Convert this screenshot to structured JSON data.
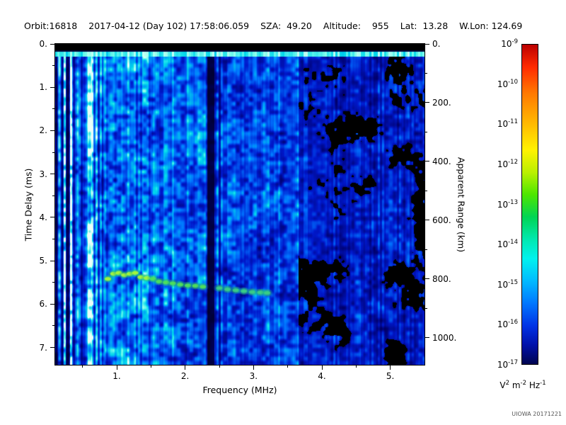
{
  "header": {
    "segments": [
      "Orbit:16818",
      "2017-04-12 (Day 102) 17:58:06.059",
      "SZA:  49.20",
      "Altitude:    955",
      "Lat:  13.28",
      "W.Lon: 124.69"
    ]
  },
  "credit": "UIOWA 20171221",
  "chart_data": {
    "type": "heatmap",
    "subtype": "radar-sounder-ionogram-spectrogram",
    "title": "",
    "xlabel": "Frequency (MHz)",
    "ylabel": "Time Delay (ms)",
    "y2label": "Apparent Range (km)",
    "x_range": [
      0.1,
      5.5
    ],
    "y_range": [
      0,
      7.4
    ],
    "y2_range": [
      0,
      1092
    ],
    "x_ticks": [
      "1.",
      "2.",
      "3.",
      "4.",
      "5."
    ],
    "x_tick_values": [
      1,
      2,
      3,
      4,
      5
    ],
    "y_ticks": [
      "0.",
      "1.",
      "2.",
      "3.",
      "4.",
      "5.",
      "6.",
      "7."
    ],
    "y_tick_values": [
      0,
      1,
      2,
      3,
      4,
      5,
      6,
      7
    ],
    "y2_ticks": [
      "0.",
      "200.",
      "400.",
      "600.",
      "800.",
      "1000."
    ],
    "y2_tick_values": [
      0,
      200,
      400,
      600,
      800,
      1000
    ],
    "grid": false,
    "colorbar": {
      "scale": "log",
      "tick_exponents": [
        -9,
        -10,
        -11,
        -12,
        -13,
        -14,
        -15,
        -16,
        -17
      ],
      "unit_parts": [
        [
          "V",
          "2"
        ],
        [
          "m",
          "-2"
        ],
        [
          "Hz",
          "-1"
        ]
      ],
      "gradient": [
        [
          "#bb0000",
          0
        ],
        [
          "#ff2a00",
          7
        ],
        [
          "#ff7700",
          15
        ],
        [
          "#ffbb00",
          25
        ],
        [
          "#fff200",
          33
        ],
        [
          "#baf000",
          40
        ],
        [
          "#4ce600",
          47
        ],
        [
          "#00d455",
          54
        ],
        [
          "#00e8b0",
          61
        ],
        [
          "#00f2ee",
          67
        ],
        [
          "#00baff",
          74
        ],
        [
          "#0077ff",
          81
        ],
        [
          "#0033e6",
          88
        ],
        [
          "#0011aa",
          94
        ],
        [
          "#000550",
          100
        ]
      ]
    },
    "features": {
      "description": "Noisy blue/cyan spectrogram field; brighter streaked columns below 0.8 MHz, moderate cyan mottling 0.8-2.3 MHz, attenuated nearly-black vertical band near 2.37 MHz, darker blue with scattered black dropouts above 3.65 MHz; black band at zero delay with a bright cyan surface line just below it; green echo trace near 5.3-5.75 ms.",
      "top_black_band_ms": [
        0,
        0.14
      ],
      "surface_cyan_line_ms": 0.24,
      "attenuated_bands_mhz": [
        {
          "f": 2.37,
          "w": 0.05,
          "s": 0.15
        },
        {
          "f": 2.5,
          "w": 0.015,
          "s": 0.55
        }
      ],
      "low_freq_stripes": [
        {
          "f": 0.115,
          "w": 0.012,
          "b": 0.35
        },
        {
          "f": 0.16,
          "w": 0.015,
          "b": 1.6
        },
        {
          "f": 0.2,
          "w": 0.012,
          "b": 0.5
        },
        {
          "f": 0.235,
          "w": 0.015,
          "b": 1.7
        },
        {
          "f": 0.28,
          "w": 0.02,
          "b": 0.35
        },
        {
          "f": 0.33,
          "w": 0.02,
          "b": 1.5
        },
        {
          "f": 0.38,
          "w": 0.015,
          "b": 0.6
        },
        {
          "f": 0.44,
          "w": 0.025,
          "b": 1.45
        },
        {
          "f": 0.52,
          "w": 0.02,
          "b": 0.8
        },
        {
          "f": 0.6,
          "w": 0.03,
          "b": 1.3
        },
        {
          "f": 0.7,
          "w": 0.02,
          "b": 0.9
        }
      ],
      "echo_trace": {
        "color": "#44ee44",
        "points_mhz_ms": [
          [
            0.87,
            5.42
          ],
          [
            0.95,
            5.3
          ],
          [
            1.03,
            5.28
          ],
          [
            1.11,
            5.33
          ],
          [
            1.19,
            5.3
          ],
          [
            1.27,
            5.28
          ],
          [
            1.35,
            5.38
          ],
          [
            1.44,
            5.4
          ],
          [
            1.53,
            5.42
          ],
          [
            1.62,
            5.48
          ],
          [
            1.72,
            5.5
          ],
          [
            1.82,
            5.52
          ],
          [
            1.93,
            5.55
          ],
          [
            2.04,
            5.57
          ],
          [
            2.15,
            5.58
          ],
          [
            2.26,
            5.6
          ],
          [
            2.5,
            5.63
          ],
          [
            2.62,
            5.66
          ],
          [
            2.74,
            5.68
          ],
          [
            2.86,
            5.7
          ],
          [
            2.98,
            5.72
          ],
          [
            3.1,
            5.73
          ],
          [
            3.2,
            5.74
          ]
        ]
      }
    }
  }
}
